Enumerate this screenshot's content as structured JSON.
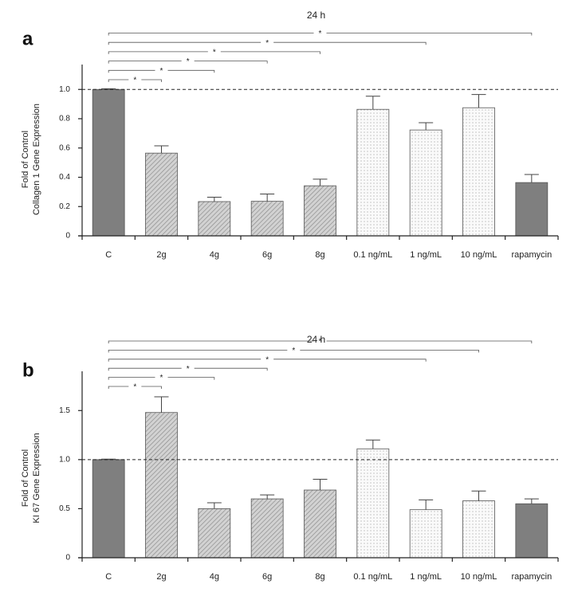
{
  "chart_data": [
    {
      "type": "bar",
      "panel": "a",
      "title": "24 h",
      "ylabel": [
        "Fold of Control",
        "Collagen 1 Gene Expression"
      ],
      "categories": [
        "C",
        "2g",
        "4g",
        "6g",
        "8g",
        "0.1 ng/mL",
        "1 ng/mL",
        "10 ng/mL",
        "rapamycin"
      ],
      "values": [
        1.0,
        0.565,
        0.234,
        0.236,
        0.342,
        0.864,
        0.723,
        0.875,
        0.364
      ],
      "errors": [
        0.005,
        0.05,
        0.03,
        0.05,
        0.045,
        0.09,
        0.05,
        0.09,
        0.055
      ],
      "patterns": [
        "solid",
        "hatch",
        "hatch",
        "hatch",
        "hatch",
        "dots",
        "dots",
        "dots",
        "solid"
      ],
      "color": "#7f7f7f",
      "ylim": [
        0,
        1.17
      ],
      "yticks": [
        0,
        0.2,
        0.4,
        0.6,
        0.8,
        {
          "value": 1,
          "label": "1.0"
        }
      ],
      "reference_line": 1,
      "comparisons": [
        {
          "from": "C",
          "to": "2g",
          "label": "*"
        },
        {
          "from": "C",
          "to": "4g",
          "label": "*"
        },
        {
          "from": "C",
          "to": "6g",
          "label": "*"
        },
        {
          "from": "C",
          "to": "8g",
          "label": "*"
        },
        {
          "from": "C",
          "to": "1 ng/mL",
          "label": "*"
        },
        {
          "from": "C",
          "to": "rapamycin",
          "label": "*"
        }
      ]
    },
    {
      "type": "bar",
      "panel": "b",
      "title": "24 h",
      "ylabel": [
        "Fold of Control",
        "KI 67  Gene Expression"
      ],
      "categories": [
        "C",
        "2g",
        "4g",
        "6g",
        "8g",
        "0.1 ng/mL",
        "1 ng/mL",
        "10 ng/mL",
        "rapamycin"
      ],
      "values": [
        1.0,
        1.48,
        0.5,
        0.6,
        0.69,
        1.11,
        0.49,
        0.58,
        0.55
      ],
      "errors": [
        0.005,
        0.16,
        0.06,
        0.04,
        0.11,
        0.09,
        0.1,
        0.1,
        0.05
      ],
      "patterns": [
        "solid",
        "hatch",
        "hatch",
        "hatch",
        "hatch",
        "dots",
        "dots",
        "dots",
        "solid"
      ],
      "color": "#7f7f7f",
      "ylim": [
        0,
        1.9
      ],
      "yticks": [
        0,
        0.5,
        {
          "value": 1,
          "label": "1.0"
        },
        1.5
      ],
      "reference_line": 1,
      "comparisons": [
        {
          "from": "C",
          "to": "2g",
          "label": "*"
        },
        {
          "from": "C",
          "to": "4g",
          "label": "*"
        },
        {
          "from": "C",
          "to": "6g",
          "label": "*"
        },
        {
          "from": "C",
          "to": "1 ng/mL",
          "label": "*"
        },
        {
          "from": "C",
          "to": "10 ng/mL",
          "label": "*"
        },
        {
          "from": "C",
          "to": "rapamycin",
          "label": "*"
        }
      ]
    }
  ]
}
